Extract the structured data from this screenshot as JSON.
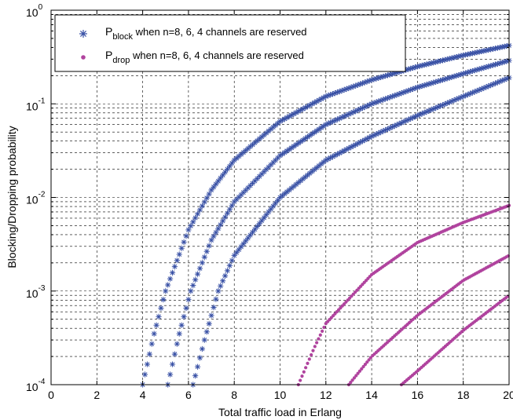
{
  "chart_data": {
    "type": "scatter",
    "xlabel": "Total traffic load in Erlang",
    "ylabel": "Blocking/Dropping probability",
    "xlim": [
      0,
      20
    ],
    "ylim": [
      0.0001,
      1
    ],
    "yscale": "log",
    "grid": true,
    "legend_position": "top-left",
    "x_ticks": [
      "0",
      "2",
      "4",
      "6",
      "8",
      "10",
      "12",
      "14",
      "16",
      "18",
      "20"
    ],
    "y_ticks": [
      {
        "base": "10",
        "exp": "0",
        "value": 1
      },
      {
        "base": "10",
        "exp": "-1",
        "value": 0.1
      },
      {
        "base": "10",
        "exp": "-2",
        "value": 0.01
      },
      {
        "base": "10",
        "exp": "-3",
        "value": 0.001
      },
      {
        "base": "10",
        "exp": "-4",
        "value": 0.0001
      }
    ],
    "legend": [
      {
        "series_group": "block",
        "prefix": "P",
        "subscript": "block",
        "text": " when n=8, 6, 4 channels are reserved",
        "marker": "star",
        "color": "#3a52a6"
      },
      {
        "series_group": "drop",
        "prefix": "P",
        "subscript": "drop",
        "text": " when n=8, 6, 4 channels are reserved",
        "marker": "dot",
        "color": "#b0439e"
      }
    ],
    "series": [
      {
        "group": "block",
        "marker": "star",
        "color": "#3a52a6",
        "points": [
          [
            4.0,
            0.0001
          ],
          [
            4.5,
            0.00035
          ],
          [
            5.0,
            0.001
          ],
          [
            6.0,
            0.0045
          ],
          [
            7.0,
            0.012
          ],
          [
            8.0,
            0.025
          ],
          [
            10.0,
            0.065
          ],
          [
            12.0,
            0.12
          ],
          [
            14.0,
            0.18
          ],
          [
            16.0,
            0.25
          ],
          [
            18.0,
            0.33
          ],
          [
            20.0,
            0.42
          ]
        ]
      },
      {
        "group": "block",
        "marker": "star",
        "color": "#3a52a6",
        "points": [
          [
            5.1,
            0.0001
          ],
          [
            5.6,
            0.00035
          ],
          [
            6.1,
            0.001
          ],
          [
            7.0,
            0.0035
          ],
          [
            8.0,
            0.009
          ],
          [
            10.0,
            0.028
          ],
          [
            12.0,
            0.06
          ],
          [
            14.0,
            0.1
          ],
          [
            16.0,
            0.15
          ],
          [
            18.0,
            0.21
          ],
          [
            20.0,
            0.29
          ]
        ]
      },
      {
        "group": "block",
        "marker": "star",
        "color": "#3a52a6",
        "points": [
          [
            6.2,
            0.0001
          ],
          [
            6.7,
            0.0003
          ],
          [
            7.3,
            0.001
          ],
          [
            8.0,
            0.0024
          ],
          [
            10.0,
            0.01
          ],
          [
            12.0,
            0.025
          ],
          [
            14.0,
            0.045
          ],
          [
            16.0,
            0.075
          ],
          [
            18.0,
            0.12
          ],
          [
            20.0,
            0.19
          ]
        ]
      },
      {
        "group": "drop",
        "marker": "dot",
        "color": "#b0439e",
        "points": [
          [
            10.8,
            0.0001
          ],
          [
            11.5,
            0.00025
          ],
          [
            12.0,
            0.00045
          ],
          [
            14.0,
            0.0015
          ],
          [
            16.0,
            0.0033
          ],
          [
            18.0,
            0.0054
          ],
          [
            20.0,
            0.0082
          ]
        ]
      },
      {
        "group": "drop",
        "marker": "dot",
        "color": "#b0439e",
        "points": [
          [
            13.0,
            0.0001
          ],
          [
            14.0,
            0.0002
          ],
          [
            16.0,
            0.00055
          ],
          [
            18.0,
            0.0013
          ],
          [
            20.0,
            0.0024
          ]
        ]
      },
      {
        "group": "drop",
        "marker": "dot",
        "color": "#b0439e",
        "points": [
          [
            15.3,
            0.0001
          ],
          [
            16.0,
            0.00014
          ],
          [
            18.0,
            0.00038
          ],
          [
            20.0,
            0.0009
          ]
        ]
      }
    ]
  }
}
